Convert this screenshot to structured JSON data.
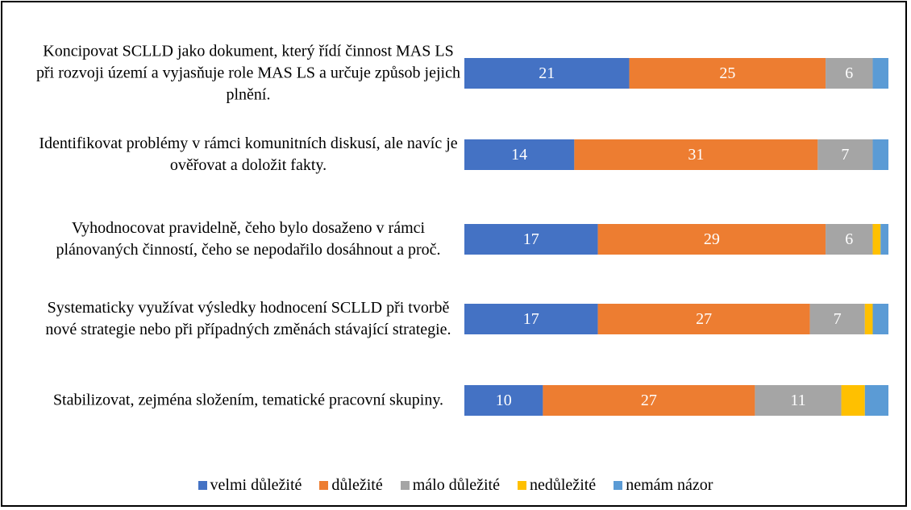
{
  "chart_data": {
    "type": "stacked_barh",
    "categories": [
      "Koncipovat SCLLD jako dokument, který řídí činnost MAS LS při rozvoji území a vyjasňuje role MAS LS a určuje způsob jejich plnění.",
      "Identifikovat problémy v rámci komunitních diskusí, ale navíc je ověřovat a doložit fakty.",
      "Vyhodnocovat pravidelně, čeho bylo dosaženo v rámci plánovaných činností, čeho se nepodařilo dosáhnout a proč.",
      "Systematicky využívat výsledky hodnocení SCLLD při tvorbě nové strategie nebo při případných změnách stávající strategie.",
      "Stabilizovat, zejména složením, tematické pracovní skupiny."
    ],
    "series": [
      {
        "name": "velmi důležité",
        "color": "#4472c4",
        "data_labels": true,
        "values": [
          21,
          14,
          17,
          17,
          10
        ]
      },
      {
        "name": "důležité",
        "color": "#ed7d31",
        "data_labels": true,
        "values": [
          25,
          31,
          29,
          27,
          27
        ]
      },
      {
        "name": "málo důležité",
        "color": "#a5a5a5",
        "data_labels": true,
        "values": [
          6,
          7,
          6,
          7,
          11
        ]
      },
      {
        "name": "nedůležité",
        "color": "#ffc000",
        "data_labels": false,
        "values": [
          0,
          0,
          1,
          1,
          3
        ]
      },
      {
        "name": "nemám názor",
        "color": "#5b9bd5",
        "data_labels": false,
        "values": [
          2,
          2,
          1,
          2,
          3
        ]
      }
    ],
    "xlim": [
      0,
      54
    ],
    "legend": "bottom"
  }
}
